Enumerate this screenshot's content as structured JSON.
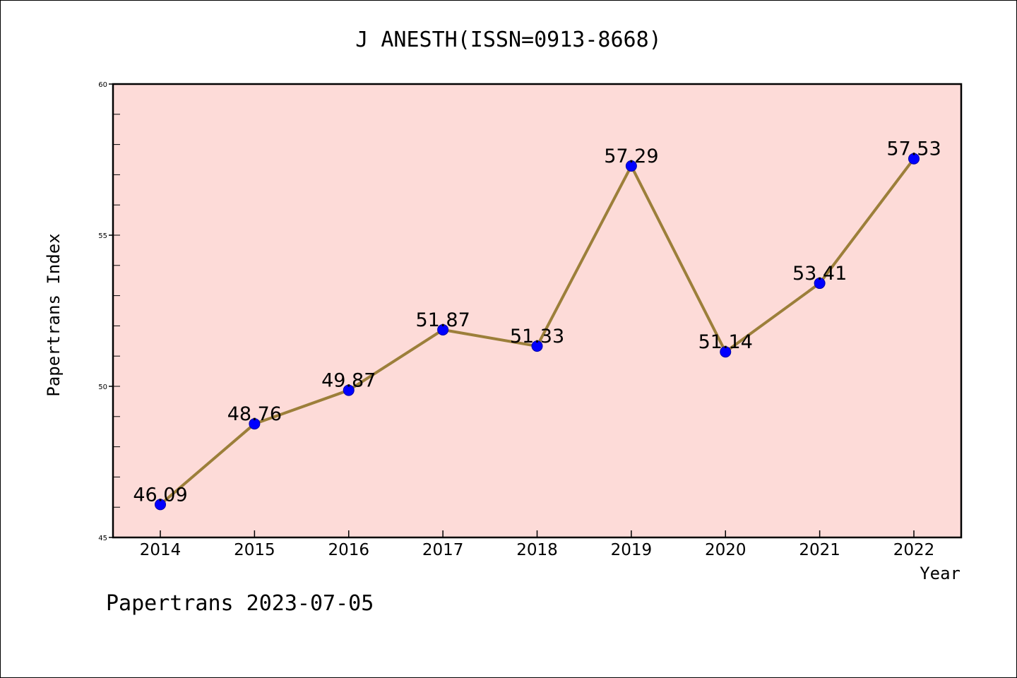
{
  "chart_data": {
    "type": "line",
    "title": "J ANESTH(ISSN=0913-8668)",
    "xlabel": "Year",
    "ylabel": "Papertrans Index",
    "x": [
      "2014",
      "2015",
      "2016",
      "2017",
      "2018",
      "2019",
      "2020",
      "2021",
      "2022"
    ],
    "series": [
      {
        "values": [
          46.09,
          48.76,
          49.87,
          51.87,
          51.33,
          57.29,
          51.14,
          53.41,
          57.53
        ],
        "data_labels": [
          "46.09",
          "48.76",
          "49.87",
          "51.87",
          "51.33",
          "57.29",
          "51.14",
          "53.41",
          "57.53"
        ]
      }
    ],
    "ylim": [
      45,
      60
    ],
    "yticks": [
      "45",
      "50",
      "55",
      "60"
    ],
    "grid": false,
    "legend": "none",
    "colors": {
      "plot_background": "#fddbd8",
      "line": "#9c7f3a",
      "marker": "#0000ff"
    },
    "footer": "Papertrans 2023-07-05"
  }
}
